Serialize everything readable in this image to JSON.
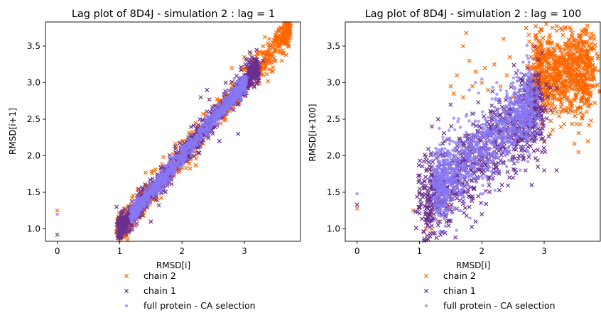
{
  "chart_data": [
    {
      "type": "scatter",
      "title": "Lag plot of 8D4J - simulation 2 : lag = 1",
      "xlabel": "RMSD[i]",
      "ylabel": "RMSD[i+1]",
      "xlim": [
        -0.19,
        3.9
      ],
      "ylim": [
        0.83,
        3.83
      ],
      "xticks": [
        0,
        1,
        2,
        3
      ],
      "yticks": [
        1.0,
        1.5,
        2.0,
        2.5,
        3.0,
        3.5
      ],
      "xtick_labels": [
        "0",
        "1",
        "2",
        "3"
      ],
      "ytick_labels": [
        "1.0",
        "1.5",
        "2.0",
        "2.5",
        "3.0",
        "3.5"
      ],
      "grid": false,
      "legend_placement": "below-center",
      "series": [
        {
          "name": "chain 2",
          "marker": "x",
          "color": "#ff6600",
          "points": [
            [
              0.0,
              1.25
            ],
            [
              1.0,
              1.12
            ],
            [
              1.05,
              1.05
            ],
            [
              1.1,
              0.95
            ],
            [
              1.2,
              1.0
            ],
            [
              1.3,
              1.35
            ],
            [
              1.5,
              1.6
            ],
            [
              1.8,
              1.85
            ],
            [
              2.0,
              2.1
            ],
            [
              2.3,
              2.4
            ],
            [
              2.5,
              2.6
            ],
            [
              2.7,
              2.85
            ],
            [
              2.9,
              3.0
            ],
            [
              3.0,
              3.2
            ],
            [
              3.1,
              3.3
            ],
            [
              3.2,
              3.4
            ],
            [
              3.3,
              3.5
            ],
            [
              3.4,
              3.6
            ],
            [
              3.5,
              3.65
            ],
            [
              3.6,
              3.55
            ],
            [
              3.65,
              3.6
            ],
            [
              3.7,
              3.5
            ],
            [
              3.2,
              3.1
            ],
            [
              3.3,
              3.25
            ],
            [
              3.0,
              3.35
            ],
            [
              3.5,
              3.3
            ],
            [
              3.6,
              3.3
            ],
            [
              3.55,
              3.7
            ],
            [
              3.38,
              3.02
            ],
            [
              3.45,
              3.15
            ],
            [
              2.8,
              3.2
            ]
          ],
          "cloud": {
            "x_range": [
              1.0,
              3.7
            ],
            "slope": 1.0,
            "intercept": 0.0,
            "spread": 0.1
          }
        },
        {
          "name": "chain 1",
          "marker": "x",
          "color": "#6a2f8f",
          "points": [
            [
              0.0,
              0.92
            ],
            [
              0.95,
              1.3
            ],
            [
              1.1,
              1.0
            ],
            [
              1.2,
              1.05
            ],
            [
              1.5,
              1.1
            ],
            [
              1.7,
              1.6
            ],
            [
              2.0,
              2.0
            ],
            [
              2.5,
              2.5
            ],
            [
              2.9,
              2.3
            ],
            [
              3.0,
              3.1
            ],
            [
              3.2,
              3.0
            ],
            [
              3.3,
              3.3
            ],
            [
              2.3,
              2.8
            ],
            [
              2.6,
              2.2
            ],
            [
              2.7,
              3.0
            ],
            [
              2.4,
              2.9
            ]
          ],
          "cloud": {
            "x_range": [
              1.0,
              3.2
            ],
            "slope": 1.0,
            "intercept": 0.0,
            "spread": 0.09
          }
        },
        {
          "name": "full protein - CA selection",
          "marker": "o",
          "color": "#8877f2",
          "points": [
            [
              0.0,
              1.2
            ],
            [
              1.2,
              1.15
            ],
            [
              1.4,
              1.35
            ],
            [
              1.6,
              1.55
            ],
            [
              1.8,
              1.8
            ],
            [
              2.0,
              2.0
            ],
            [
              2.2,
              2.2
            ],
            [
              2.4,
              2.35
            ],
            [
              2.6,
              2.55
            ],
            [
              2.8,
              2.8
            ],
            [
              2.9,
              2.9
            ],
            [
              3.0,
              3.0
            ]
          ],
          "cloud": {
            "x_range": [
              1.2,
              3.0
            ],
            "slope": 1.0,
            "intercept": 0.0,
            "spread": 0.06
          }
        }
      ]
    },
    {
      "type": "scatter",
      "title": "Lag plot of 8D4J - simulation 2 : lag = 100",
      "xlabel": "RMSD[i]",
      "ylabel": "RMSD[i+100]",
      "xlim": [
        -0.19,
        3.9
      ],
      "ylim": [
        0.83,
        3.83
      ],
      "xticks": [
        0,
        1,
        2,
        3
      ],
      "yticks": [
        1.0,
        1.5,
        2.0,
        2.5,
        3.0,
        3.5
      ],
      "xtick_labels": [
        "0",
        "1",
        "2",
        "3"
      ],
      "ytick_labels": [
        "1.0",
        "1.5",
        "2.0",
        "2.5",
        "3.0",
        "3.5"
      ],
      "grid": false,
      "legend_placement": "below-center",
      "series": [
        {
          "name": "chain 2",
          "marker": "x",
          "color": "#ff6600",
          "points": [
            [
              0.0,
              1.28
            ],
            [
              0.9,
              1.25
            ],
            [
              1.0,
              1.3
            ],
            [
              1.1,
              1.0
            ],
            [
              1.2,
              1.0
            ],
            [
              1.3,
              1.1
            ],
            [
              1.5,
              1.3
            ],
            [
              1.6,
              3.1
            ],
            [
              1.7,
              3.5
            ],
            [
              1.75,
              3.68
            ],
            [
              1.8,
              3.3
            ],
            [
              1.9,
              3.15
            ],
            [
              2.0,
              3.0
            ],
            [
              2.05,
              3.2
            ],
            [
              2.1,
              2.9
            ],
            [
              2.2,
              3.25
            ],
            [
              2.3,
              2.95
            ],
            [
              2.4,
              3.1
            ],
            [
              2.5,
              2.8
            ],
            [
              2.6,
              2.55
            ],
            [
              2.7,
              2.8
            ],
            [
              2.8,
              3.1
            ],
            [
              2.9,
              2.9
            ],
            [
              3.0,
              2.2
            ],
            [
              3.1,
              2.3
            ],
            [
              3.2,
              2.6
            ],
            [
              3.3,
              2.95
            ],
            [
              3.4,
              3.0
            ],
            [
              3.5,
              3.1
            ],
            [
              3.6,
              2.9
            ],
            [
              3.7,
              2.2
            ],
            [
              3.65,
              3.55
            ],
            [
              3.55,
              2.05
            ],
            [
              1.5,
              2.95
            ],
            [
              1.55,
              2.85
            ],
            [
              2.35,
              3.6
            ],
            [
              2.45,
              3.35
            ],
            [
              3.3,
              3.65
            ],
            [
              3.45,
              3.68
            ],
            [
              1.7,
              2.8
            ],
            [
              1.85,
              2.95
            ]
          ],
          "cloud": {
            "x_range": [
              2.9,
              3.7
            ],
            "slope": 0.0,
            "intercept": 3.15,
            "spread": 0.3
          }
        },
        {
          "name": "chian 1",
          "marker": "x",
          "color": "#6a2f8f",
          "points": [
            [
              0.0,
              1.33
            ],
            [
              1.0,
              1.5
            ],
            [
              1.1,
              1.2
            ],
            [
              1.3,
              1.05
            ],
            [
              1.5,
              1.4
            ],
            [
              1.6,
              1.55
            ],
            [
              1.8,
              1.3
            ],
            [
              2.0,
              2.0
            ],
            [
              2.2,
              2.4
            ],
            [
              2.4,
              2.6
            ],
            [
              2.6,
              2.0
            ],
            [
              2.7,
              1.8
            ],
            [
              2.8,
              1.6
            ],
            [
              2.9,
              1.85
            ],
            [
              3.0,
              1.8
            ],
            [
              3.2,
              1.8
            ],
            [
              1.2,
              2.4
            ],
            [
              1.3,
              2.5
            ],
            [
              1.5,
              2.7
            ],
            [
              1.4,
              2.2
            ],
            [
              2.5,
              1.7
            ],
            [
              2.35,
              1.9
            ],
            [
              2.0,
              1.2
            ],
            [
              1.9,
              1.1
            ]
          ],
          "cloud": {
            "x_range": [
              1.1,
              2.9
            ],
            "slope": 0.7,
            "intercept": 0.6,
            "spread": 0.3
          }
        },
        {
          "name": "full protein - CA selection",
          "marker": "o",
          "color": "#8877f2",
          "points": [
            [
              0.0,
              1.48
            ],
            [
              1.3,
              1.45
            ],
            [
              1.5,
              1.7
            ],
            [
              1.7,
              1.9
            ],
            [
              1.9,
              2.1
            ],
            [
              2.0,
              2.3
            ],
            [
              2.2,
              2.4
            ],
            [
              2.4,
              2.5
            ],
            [
              2.6,
              2.6
            ],
            [
              2.8,
              2.8
            ],
            [
              2.9,
              2.6
            ],
            [
              2.7,
              3.1
            ],
            [
              2.3,
              2.9
            ],
            [
              2.5,
              3.0
            ],
            [
              1.8,
              2.9
            ],
            [
              1.9,
              3.0
            ],
            [
              2.0,
              3.05
            ]
          ],
          "cloud": {
            "x_range": [
              1.3,
              2.8
            ],
            "slope": 0.75,
            "intercept": 0.6,
            "spread": 0.25
          }
        }
      ]
    }
  ]
}
